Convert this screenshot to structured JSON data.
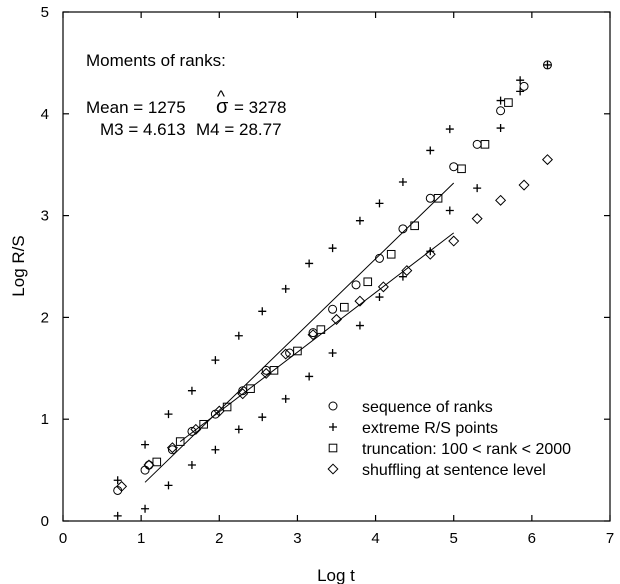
{
  "chart_data": {
    "type": "scatter",
    "xlabel": "Log t",
    "ylabel": "Log R/S",
    "xlim": [
      0,
      7
    ],
    "ylim": [
      0,
      5
    ],
    "x_ticks": [
      0,
      1,
      2,
      3,
      4,
      5,
      6,
      7
    ],
    "y_ticks": [
      0,
      1,
      2,
      3,
      4,
      5
    ],
    "grid": false,
    "legend_position": "bottom-right",
    "annotations": {
      "heading": "Moments of ranks:",
      "mean": "Mean = 1275",
      "sigma_symbol": "σ",
      "sigma_hat": "^",
      "sigma_value": "= 3278",
      "m3": "M3 = 4.613",
      "m4": "M4 = 28.77"
    },
    "series": [
      {
        "name": "sequence of ranks",
        "marker": "circle",
        "points": [
          [
            0.7,
            0.3
          ],
          [
            1.05,
            0.5
          ],
          [
            1.1,
            0.55
          ],
          [
            1.4,
            0.7
          ],
          [
            1.65,
            0.88
          ],
          [
            1.95,
            1.05
          ],
          [
            2.3,
            1.28
          ],
          [
            2.6,
            1.48
          ],
          [
            2.9,
            1.65
          ],
          [
            3.2,
            1.85
          ],
          [
            3.45,
            2.08
          ],
          [
            3.75,
            2.32
          ],
          [
            4.05,
            2.58
          ],
          [
            4.35,
            2.87
          ],
          [
            4.7,
            3.17
          ],
          [
            5.0,
            3.48
          ],
          [
            5.3,
            3.7
          ],
          [
            5.6,
            4.03
          ],
          [
            5.9,
            4.27
          ],
          [
            6.2,
            4.48
          ]
        ]
      },
      {
        "name": "extreme R/S points",
        "marker": "plus",
        "points": [
          [
            0.7,
            0.4
          ],
          [
            1.05,
            0.75
          ],
          [
            1.35,
            1.05
          ],
          [
            1.65,
            1.28
          ],
          [
            1.95,
            1.58
          ],
          [
            2.25,
            1.82
          ],
          [
            2.55,
            2.06
          ],
          [
            2.85,
            2.28
          ],
          [
            3.15,
            2.53
          ],
          [
            3.45,
            2.68
          ],
          [
            3.8,
            2.95
          ],
          [
            4.05,
            3.12
          ],
          [
            4.35,
            3.33
          ],
          [
            4.7,
            3.64
          ],
          [
            4.95,
            3.85
          ],
          [
            5.6,
            4.13
          ],
          [
            5.85,
            4.33
          ],
          [
            6.2,
            4.48
          ],
          [
            0.7,
            0.05
          ],
          [
            1.05,
            0.12
          ],
          [
            1.35,
            0.35
          ],
          [
            1.65,
            0.55
          ],
          [
            1.95,
            0.7
          ],
          [
            2.25,
            0.9
          ],
          [
            2.55,
            1.02
          ],
          [
            2.85,
            1.2
          ],
          [
            3.15,
            1.42
          ],
          [
            3.45,
            1.65
          ],
          [
            3.8,
            1.92
          ],
          [
            4.05,
            2.2
          ],
          [
            4.35,
            2.4
          ],
          [
            4.7,
            2.65
          ],
          [
            4.95,
            3.05
          ],
          [
            5.3,
            3.27
          ],
          [
            5.6,
            3.86
          ],
          [
            5.85,
            4.22
          ]
        ]
      },
      {
        "name": "truncation: 100 < rank < 2000",
        "marker": "square",
        "points": [
          [
            1.2,
            0.58
          ],
          [
            1.5,
            0.78
          ],
          [
            1.8,
            0.95
          ],
          [
            2.1,
            1.12
          ],
          [
            2.4,
            1.3
          ],
          [
            2.7,
            1.48
          ],
          [
            3.0,
            1.67
          ],
          [
            3.3,
            1.88
          ],
          [
            3.6,
            2.1
          ],
          [
            3.9,
            2.35
          ],
          [
            4.2,
            2.62
          ],
          [
            4.5,
            2.9
          ],
          [
            4.8,
            3.17
          ],
          [
            5.1,
            3.46
          ],
          [
            5.4,
            3.7
          ],
          [
            5.7,
            4.11
          ]
        ]
      },
      {
        "name": "shuffling at sentence level",
        "marker": "diamond",
        "points": [
          [
            0.75,
            0.34
          ],
          [
            1.1,
            0.55
          ],
          [
            1.4,
            0.72
          ],
          [
            1.7,
            0.9
          ],
          [
            2.0,
            1.08
          ],
          [
            2.3,
            1.25
          ],
          [
            2.6,
            1.45
          ],
          [
            2.85,
            1.64
          ],
          [
            3.2,
            1.83
          ],
          [
            3.5,
            1.98
          ],
          [
            3.8,
            2.16
          ],
          [
            4.1,
            2.3
          ],
          [
            4.4,
            2.46
          ],
          [
            4.7,
            2.62
          ],
          [
            5.0,
            2.75
          ],
          [
            5.3,
            2.97
          ],
          [
            5.6,
            3.15
          ],
          [
            5.9,
            3.3
          ],
          [
            6.2,
            3.55
          ]
        ]
      }
    ],
    "fit_lines": [
      {
        "x": [
          1.05,
          5.0
        ],
        "y": [
          0.38,
          3.32
        ]
      },
      {
        "x": [
          1.5,
          5.0
        ],
        "y": [
          0.78,
          2.83
        ]
      }
    ]
  }
}
